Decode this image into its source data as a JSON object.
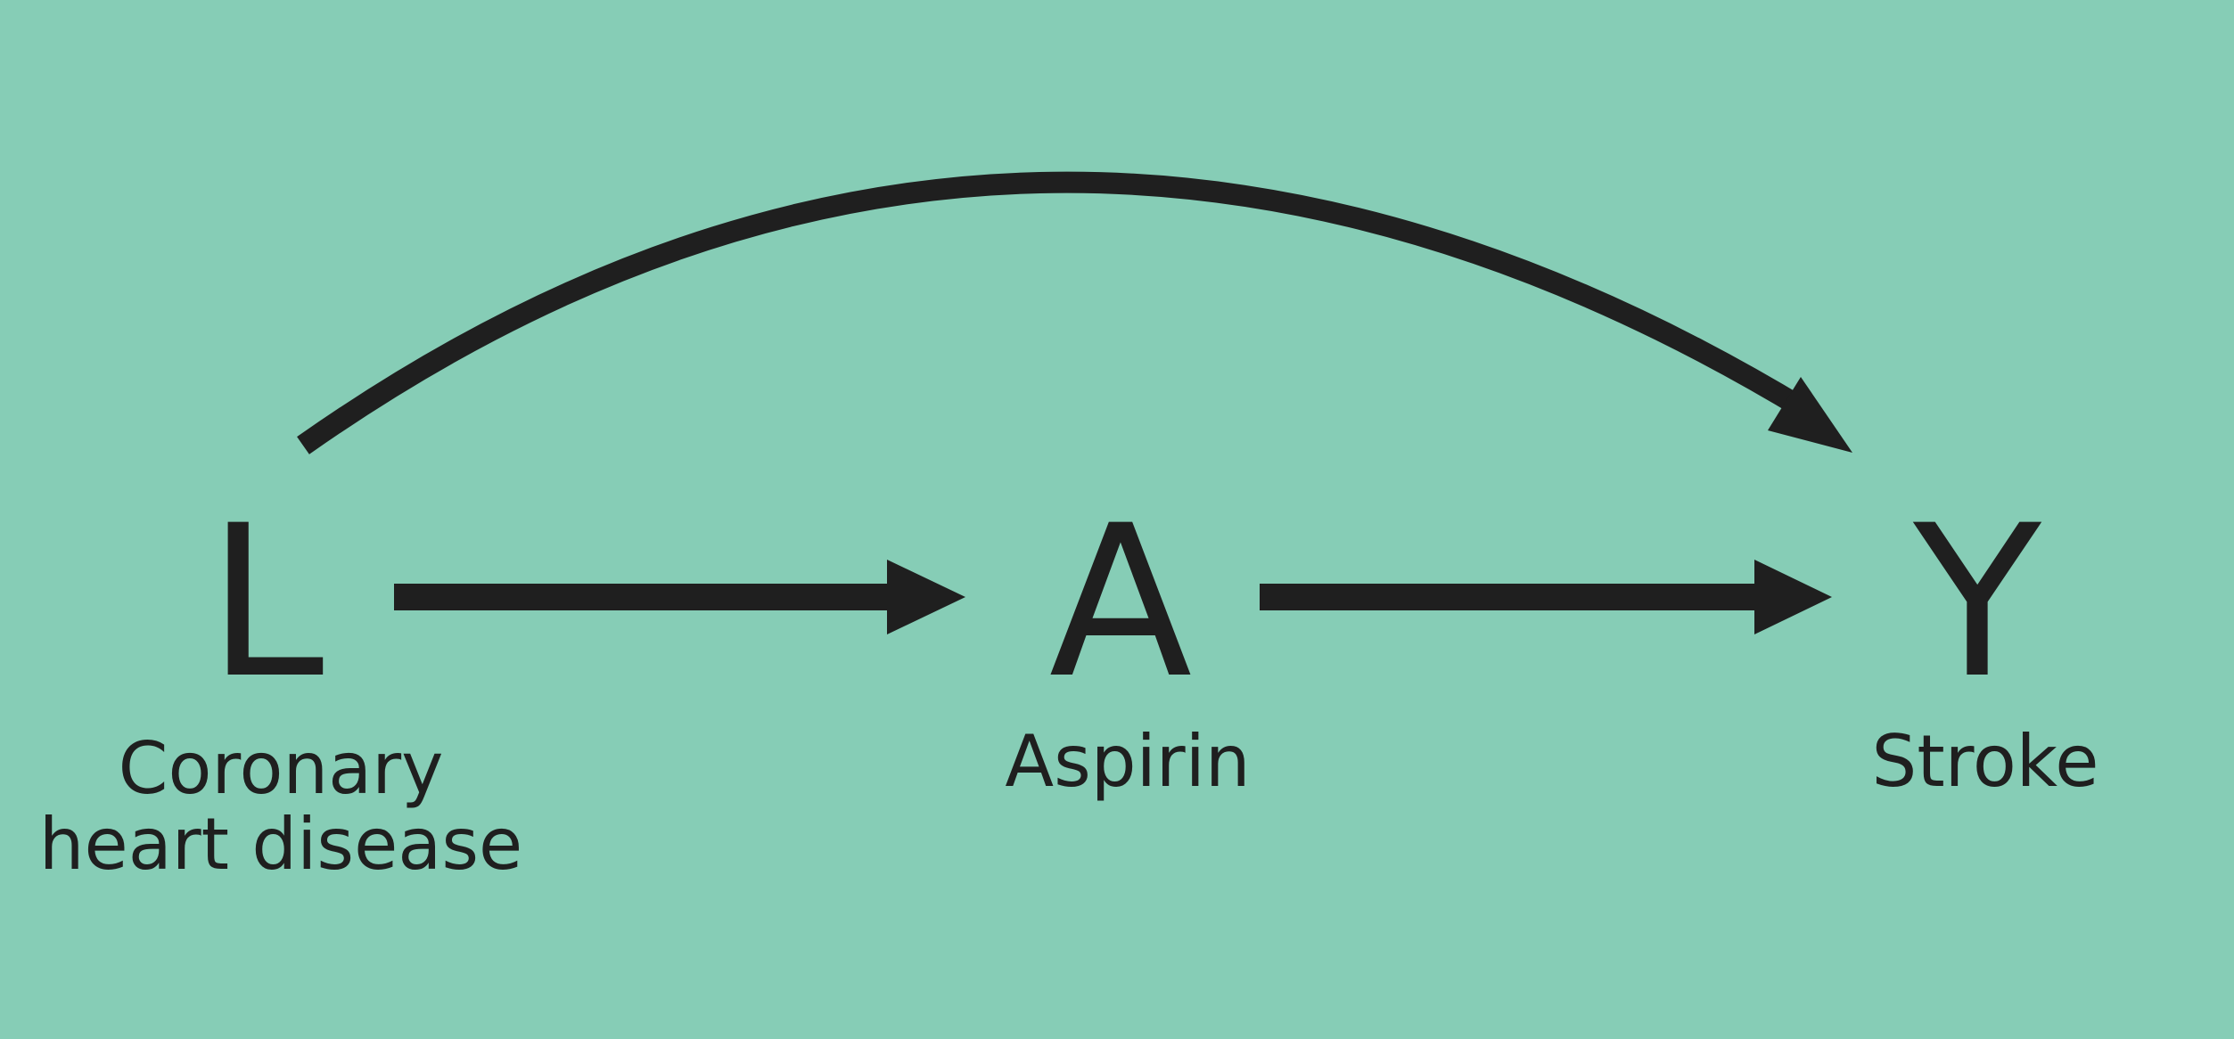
{
  "diagram": {
    "background_color": "#86cdb6",
    "ink_color": "#1f1f1f",
    "nodes": [
      {
        "id": "L",
        "letter": "L",
        "label_lines": [
          "Coronary",
          "heart disease"
        ]
      },
      {
        "id": "A",
        "letter": "A",
        "label_lines": [
          "Aspirin"
        ]
      },
      {
        "id": "Y",
        "letter": "Y",
        "label_lines": [
          "Stroke"
        ]
      }
    ],
    "edges": [
      {
        "from": "L",
        "to": "A",
        "style": "straight"
      },
      {
        "from": "A",
        "to": "Y",
        "style": "straight"
      },
      {
        "from": "L",
        "to": "Y",
        "style": "curved"
      }
    ]
  }
}
